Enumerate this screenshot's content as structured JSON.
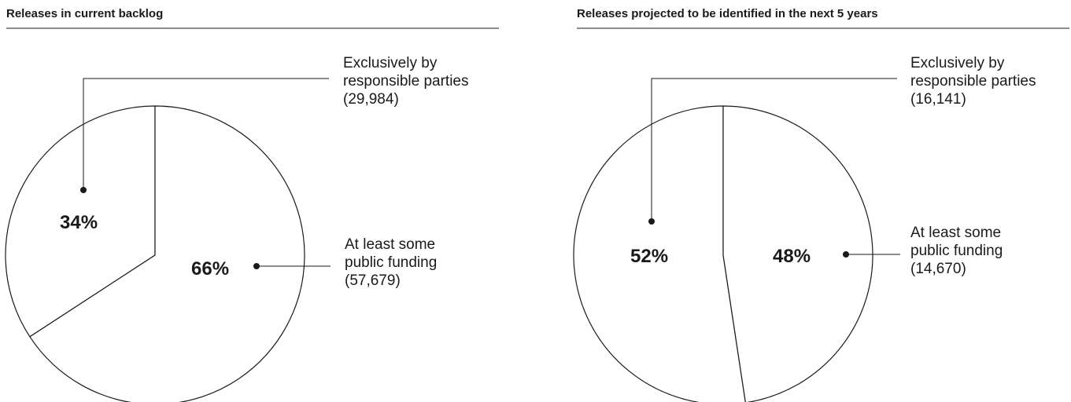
{
  "chart_data": [
    {
      "type": "pie",
      "title": "Releases in current backlog",
      "slices": [
        {
          "label_lines": [
            "Exclusively by",
            "responsible parties",
            "(29,984)"
          ],
          "value": 29984,
          "percent_label": "34%"
        },
        {
          "label_lines": [
            "At least some",
            "public funding",
            "(57,679)"
          ],
          "value": 57679,
          "percent_label": "66%"
        }
      ]
    },
    {
      "type": "pie",
      "title": "Releases projected to be identified in the next 5 years",
      "slices": [
        {
          "label_lines": [
            "Exclusively by",
            "responsible parties",
            "(16,141)"
          ],
          "value": 16141,
          "percent_label": "52%"
        },
        {
          "label_lines": [
            "At least some",
            "public funding",
            "(14,670)"
          ],
          "value": 14670,
          "percent_label": "48%"
        }
      ]
    }
  ],
  "colors": {
    "ink": "#1a1a1a",
    "fill": "#ffffff"
  }
}
